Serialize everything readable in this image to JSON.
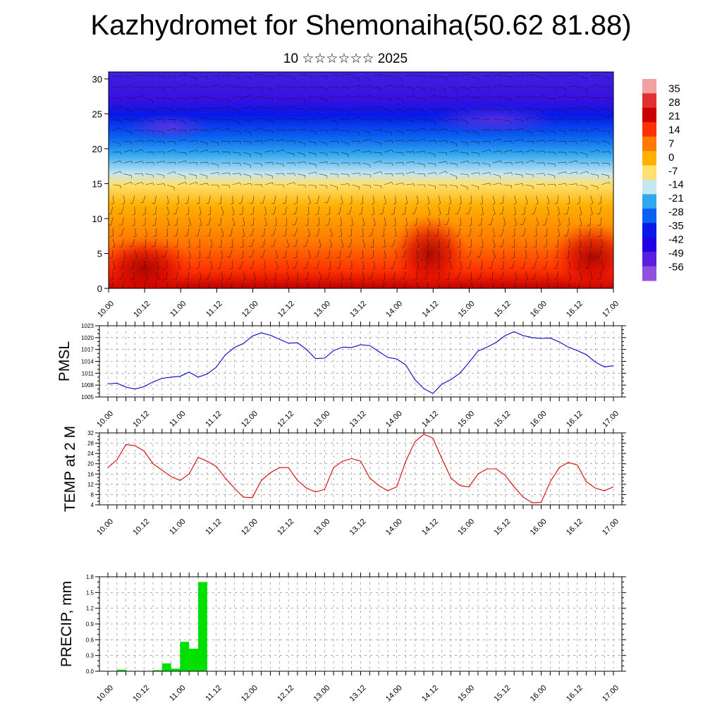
{
  "title": "Kazhydromet for Shemonaiha(50.62 81.88)",
  "subtitle": "10 ☆☆☆☆☆☆ 2025",
  "time_labels": [
    "10.00",
    "10.12",
    "11.00",
    "11.12",
    "12.00",
    "12.12",
    "13.00",
    "13.12",
    "14.00",
    "14.12",
    "15.00",
    "15.12",
    "16.00",
    "16.12",
    "17.00"
  ],
  "colorbar": {
    "labels": [
      "35",
      "28",
      "21",
      "14",
      "7",
      "0",
      "-7",
      "-14",
      "-21",
      "-28",
      "-35",
      "-42",
      "-49",
      "-56"
    ],
    "colors": [
      "#f2a0a0",
      "#e03030",
      "#c80000",
      "#ff3000",
      "#ff7a00",
      "#ffb000",
      "#ffe070",
      "#c6e6f0",
      "#30a8f0",
      "#0a60f0",
      "#0818e8",
      "#2000e0",
      "#5a20e0",
      "#9050e0"
    ]
  },
  "chart_data": [
    {
      "type": "heatmap",
      "name": "Temperature and wind cross-section",
      "title": "",
      "ylabel": "",
      "y_ticks": [
        0,
        5,
        10,
        15,
        20,
        25,
        30
      ],
      "ylim": [
        0,
        31
      ],
      "x_ticks": [
        "10.00",
        "10.12",
        "11.00",
        "11.12",
        "12.00",
        "12.12",
        "13.00",
        "13.12",
        "14.00",
        "14.12",
        "15.00",
        "15.12",
        "16.00",
        "16.12",
        "17.00"
      ],
      "overlay": "wind barbs",
      "description_levels": "warm (red) near surface, cold (blue/violet) above ~20"
    },
    {
      "type": "line",
      "ylabel": "PMSL",
      "ylim": [
        1005,
        1023
      ],
      "y_ticks": [
        1005,
        1008,
        1011,
        1014,
        1017,
        1020,
        1023
      ],
      "color": "#0000cc",
      "x_ticks": [
        "10.00",
        "10.12",
        "11.00",
        "11.12",
        "12.00",
        "12.12",
        "13.00",
        "13.12",
        "14.00",
        "14.12",
        "15.00",
        "15.12",
        "16.00",
        "16.12",
        "17.00"
      ],
      "values": [
        1008.3,
        1008.5,
        1007.5,
        1007.0,
        1007.6,
        1008.8,
        1009.7,
        1010.0,
        1010.2,
        1011.3,
        1010.0,
        1010.8,
        1012.5,
        1015.6,
        1017.5,
        1018.5,
        1020.4,
        1021.2,
        1020.6,
        1019.6,
        1018.6,
        1018.7,
        1017.0,
        1014.7,
        1014.8,
        1016.7,
        1017.6,
        1017.5,
        1018.2,
        1018.0,
        1016.5,
        1015.0,
        1014.6,
        1013.1,
        1009.4,
        1007.1,
        1005.9,
        1008.2,
        1009.4,
        1011.0,
        1013.7,
        1016.6,
        1017.6,
        1018.8,
        1020.5,
        1021.5,
        1020.5,
        1020.0,
        1019.8,
        1019.9,
        1018.9,
        1017.6,
        1016.7,
        1015.7,
        1013.8,
        1012.6,
        1012.9
      ]
    },
    {
      "type": "line",
      "ylabel": "TEMP at 2 M",
      "ylim": [
        4,
        32
      ],
      "y_ticks": [
        4,
        8,
        12,
        16,
        20,
        24,
        28,
        32
      ],
      "color": "#dd0000",
      "x_ticks": [
        "10.00",
        "10.12",
        "11.00",
        "11.12",
        "12.00",
        "12.12",
        "13.00",
        "13.12",
        "14.00",
        "14.12",
        "15.00",
        "15.12",
        "16.00",
        "16.12",
        "17.00"
      ],
      "values": [
        18.5,
        21.5,
        27.5,
        27.0,
        25.0,
        20.0,
        17.5,
        15.0,
        13.5,
        16.0,
        22.5,
        21.0,
        19.0,
        14.5,
        10.5,
        7.0,
        6.8,
        13.5,
        16.5,
        18.5,
        18.5,
        13.5,
        10.5,
        9.0,
        10.0,
        18.5,
        21.0,
        22.0,
        21.0,
        14.5,
        11.5,
        9.5,
        11.0,
        21.0,
        28.5,
        31.5,
        30.0,
        22.0,
        14.5,
        11.5,
        11.0,
        16.0,
        18.0,
        18.0,
        15.5,
        11.0,
        7.0,
        4.8,
        5.0,
        13.0,
        18.5,
        20.5,
        19.5,
        13.0,
        10.5,
        9.5,
        11.0
      ]
    },
    {
      "type": "bar",
      "ylabel": "PRECIP, mm",
      "ylim": [
        0,
        1.8
      ],
      "y_ticks": [
        "0.0",
        "0.3",
        "0.6",
        "0.9",
        "1.2",
        "1.5",
        "1.8"
      ],
      "color": "#00e000",
      "x_ticks": [
        "10.00",
        "10.12",
        "11.00",
        "11.12",
        "12.00",
        "12.12",
        "13.00",
        "13.12",
        "14.00",
        "14.12",
        "15.00",
        "15.12",
        "16.00",
        "16.12",
        "17.00"
      ],
      "values": [
        0,
        0.03,
        0,
        0,
        0,
        0.02,
        0.15,
        0.05,
        0.56,
        0.43,
        1.7,
        0,
        0,
        0,
        0,
        0,
        0,
        0,
        0,
        0,
        0,
        0,
        0,
        0,
        0,
        0,
        0,
        0,
        0,
        0,
        0,
        0,
        0,
        0,
        0,
        0,
        0,
        0,
        0,
        0,
        0,
        0,
        0,
        0,
        0,
        0,
        0,
        0,
        0,
        0,
        0,
        0,
        0,
        0,
        0,
        0,
        0
      ]
    }
  ]
}
